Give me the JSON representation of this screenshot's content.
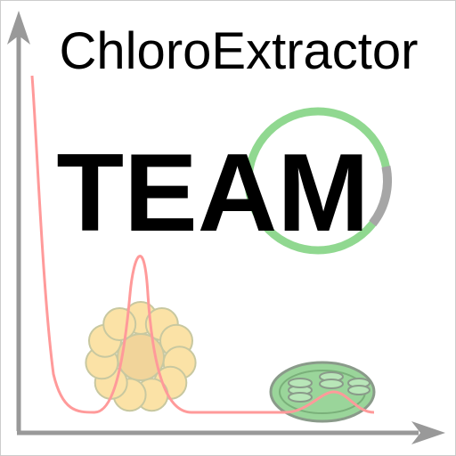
{
  "title": "ChloroExtractor",
  "subtitle": "TEAM",
  "colors": {
    "background": "#ffffff",
    "frame": "#cccccc",
    "axis": "#999999",
    "curve": "#ff9a9a",
    "plasmid_ring": "#90d890",
    "plasmid_segment": "#a6a6a6",
    "petal_fill": "#fbe2a6",
    "petal_stroke": "#c8c8a0",
    "flower_center": "#f1d49a",
    "chloroplast_fill": "#9ad59a",
    "chloroplast_stroke": "#8a9a8a",
    "text": "#000000"
  },
  "icons": [
    "axes-arrows",
    "absorption-curve",
    "plasmid-ring",
    "flower-icon",
    "chloroplast-icon"
  ]
}
